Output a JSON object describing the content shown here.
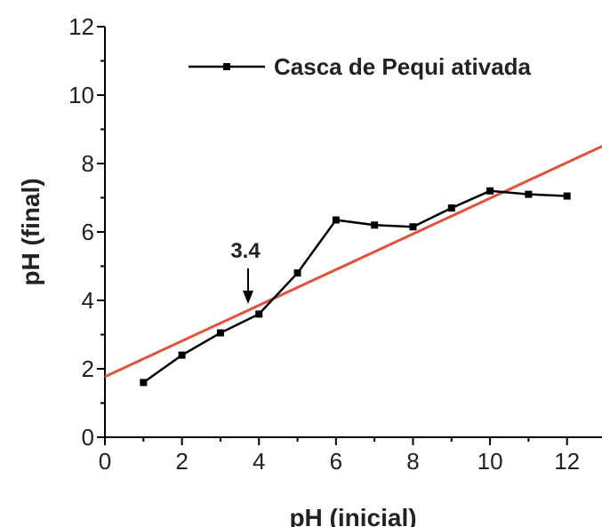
{
  "chart_data": {
    "type": "line",
    "xlabel": "pH (inicial)",
    "ylabel": "pH (final)",
    "series": [
      {
        "name": "Casca de Pequi ativada",
        "color": "#000000",
        "x": [
          1,
          2,
          3,
          4,
          5,
          6,
          7,
          8,
          9,
          10,
          11,
          12
        ],
        "values": [
          1.6,
          2.4,
          3.05,
          3.6,
          4.8,
          6.35,
          6.2,
          6.15,
          6.7,
          7.2,
          7.1,
          7.05
        ]
      }
    ],
    "fit_line": {
      "color": "#e0533f",
      "x": [
        0,
        13
      ],
      "values": [
        1.77,
        8.55
      ]
    },
    "annotations": [
      {
        "text": "3.4"
      }
    ],
    "xlim": [
      0,
      13
    ],
    "xticks": [
      0,
      2,
      4,
      6,
      8,
      10,
      12
    ],
    "ylim": [
      0,
      12
    ],
    "yticks": [
      0,
      2,
      4,
      6,
      8,
      10,
      12
    ],
    "legend": "upper right",
    "grid": false
  }
}
